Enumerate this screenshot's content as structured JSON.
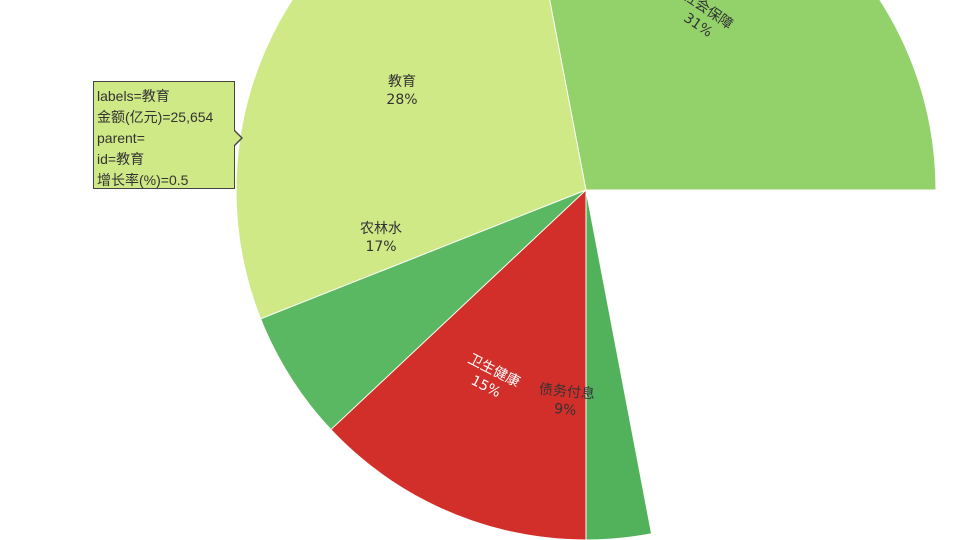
{
  "chart_data": {
    "type": "pie",
    "categories": [
      "社会保障",
      "债务付息",
      "卫生健康",
      "农林水",
      "教育"
    ],
    "values": [
      31,
      9,
      15,
      17,
      28
    ],
    "value_unit": "%",
    "colors": [
      "#93d16a",
      "#52b25c",
      "#d32f2a",
      "#5bb862",
      "#cfe987"
    ],
    "label_colors": [
      "#333333",
      "#333333",
      "#ffffff",
      "#333333",
      "#333333"
    ],
    "title": "",
    "legend": "none"
  },
  "tooltip": {
    "line1": "labels=教育",
    "line2": "金额(亿元)=25,654",
    "line3": "parent=",
    "line4": "id=教育",
    "line5": "增长率(%)=0.5"
  }
}
